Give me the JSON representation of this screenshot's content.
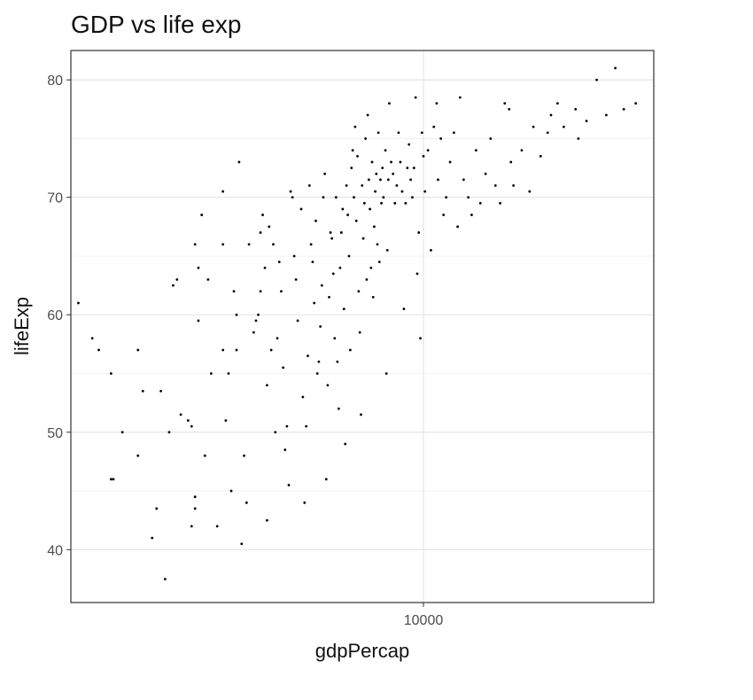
{
  "chart_data": {
    "type": "scatter",
    "title": "GDP vs life exp",
    "xlabel": "gdpPercap",
    "ylabel": "lifeExp",
    "x_scale": "log10",
    "x_ticks": [
      10000
    ],
    "x_tick_labels": [
      "10000"
    ],
    "xlim": [
      1000,
      45000
    ],
    "y_ticks": [
      40,
      50,
      60,
      70,
      80
    ],
    "y_tick_labels": [
      "40",
      "50",
      "60",
      "70",
      "80"
    ],
    "ylim": [
      35.5,
      82.5
    ],
    "grid": true,
    "marker_color": "#000000",
    "points": [
      [
        1050,
        61
      ],
      [
        1150,
        58
      ],
      [
        1200,
        57
      ],
      [
        1300,
        55
      ],
      [
        1400,
        50
      ],
      [
        1300,
        46
      ],
      [
        1320,
        46
      ],
      [
        1550,
        57
      ],
      [
        1600,
        53.5
      ],
      [
        1700,
        41
      ],
      [
        1750,
        43.5
      ],
      [
        1800,
        53.5
      ],
      [
        1850,
        37.5
      ],
      [
        1900,
        50
      ],
      [
        1550,
        48
      ],
      [
        1950,
        62.5
      ],
      [
        2000,
        63
      ],
      [
        2050,
        51.5
      ],
      [
        2150,
        51
      ],
      [
        2200,
        50.5
      ],
      [
        2200,
        42
      ],
      [
        2250,
        43.5
      ],
      [
        2250,
        44.5
      ],
      [
        2300,
        59.5
      ],
      [
        2250,
        66
      ],
      [
        2300,
        64
      ],
      [
        2350,
        68.5
      ],
      [
        2450,
        63
      ],
      [
        2400,
        48
      ],
      [
        2500,
        55
      ],
      [
        2600,
        42
      ],
      [
        2700,
        70.5
      ],
      [
        2700,
        66
      ],
      [
        2700,
        57
      ],
      [
        2750,
        51
      ],
      [
        2800,
        55
      ],
      [
        2850,
        45
      ],
      [
        2900,
        62
      ],
      [
        2950,
        60
      ],
      [
        2950,
        57
      ],
      [
        3000,
        73
      ],
      [
        3050,
        40.5
      ],
      [
        3100,
        48
      ],
      [
        3150,
        44
      ],
      [
        3200,
        66
      ],
      [
        3300,
        58.5
      ],
      [
        3350,
        59.5
      ],
      [
        3400,
        60
      ],
      [
        3450,
        62
      ],
      [
        3450,
        67
      ],
      [
        3500,
        68.5
      ],
      [
        3550,
        64
      ],
      [
        3600,
        54
      ],
      [
        3600,
        42.5
      ],
      [
        3650,
        67.5
      ],
      [
        3700,
        57
      ],
      [
        3750,
        66
      ],
      [
        3800,
        50
      ],
      [
        3850,
        58
      ],
      [
        3900,
        64.5
      ],
      [
        3950,
        62
      ],
      [
        4000,
        55.5
      ],
      [
        4050,
        48.5
      ],
      [
        4100,
        50.5
      ],
      [
        4150,
        45.5
      ],
      [
        4200,
        70.5
      ],
      [
        4250,
        70
      ],
      [
        4300,
        65
      ],
      [
        4350,
        63
      ],
      [
        4400,
        59.5
      ],
      [
        4500,
        69
      ],
      [
        4550,
        53
      ],
      [
        4600,
        44
      ],
      [
        4650,
        50.5
      ],
      [
        4700,
        56.5
      ],
      [
        4750,
        71
      ],
      [
        4800,
        66
      ],
      [
        4850,
        64.5
      ],
      [
        4900,
        61
      ],
      [
        4950,
        68
      ],
      [
        5000,
        55
      ],
      [
        5050,
        56
      ],
      [
        5100,
        59
      ],
      [
        5150,
        62.5
      ],
      [
        5200,
        70
      ],
      [
        5250,
        72
      ],
      [
        5300,
        46
      ],
      [
        5350,
        54
      ],
      [
        5400,
        61.5
      ],
      [
        5450,
        67
      ],
      [
        5500,
        66.5
      ],
      [
        5550,
        63.5
      ],
      [
        5600,
        58
      ],
      [
        5650,
        70
      ],
      [
        5700,
        56
      ],
      [
        5750,
        52
      ],
      [
        5800,
        64
      ],
      [
        5850,
        67
      ],
      [
        5900,
        69
      ],
      [
        5950,
        60.5
      ],
      [
        6000,
        49
      ],
      [
        6050,
        71
      ],
      [
        6100,
        68.5
      ],
      [
        6150,
        65
      ],
      [
        6200,
        57
      ],
      [
        6250,
        72.5
      ],
      [
        6300,
        74
      ],
      [
        6350,
        70
      ],
      [
        6400,
        76
      ],
      [
        6450,
        68
      ],
      [
        6500,
        73.5
      ],
      [
        6550,
        62
      ],
      [
        6600,
        58.5
      ],
      [
        6650,
        51.5
      ],
      [
        6700,
        71
      ],
      [
        6750,
        66.5
      ],
      [
        6800,
        69.5
      ],
      [
        6850,
        75
      ],
      [
        6900,
        63
      ],
      [
        6950,
        77
      ],
      [
        7000,
        71.5
      ],
      [
        7050,
        69
      ],
      [
        7100,
        64
      ],
      [
        7150,
        73
      ],
      [
        7200,
        61.5
      ],
      [
        7250,
        67.5
      ],
      [
        7300,
        70.5
      ],
      [
        7350,
        72
      ],
      [
        7400,
        66
      ],
      [
        7450,
        75.5
      ],
      [
        7500,
        64.5
      ],
      [
        7550,
        71.5
      ],
      [
        7600,
        69.5
      ],
      [
        7650,
        72.5
      ],
      [
        7700,
        70
      ],
      [
        7800,
        74
      ],
      [
        7850,
        55
      ],
      [
        7900,
        65.5
      ],
      [
        7950,
        71.5
      ],
      [
        8000,
        78
      ],
      [
        8100,
        73
      ],
      [
        8200,
        72
      ],
      [
        8300,
        69.5
      ],
      [
        8400,
        71
      ],
      [
        8500,
        75.5
      ],
      [
        8600,
        73
      ],
      [
        8700,
        70.5
      ],
      [
        8800,
        60.5
      ],
      [
        8900,
        69.5
      ],
      [
        9000,
        72.5
      ],
      [
        9100,
        74.5
      ],
      [
        9200,
        71.5
      ],
      [
        9300,
        70
      ],
      [
        9400,
        72.5
      ],
      [
        9500,
        78.5
      ],
      [
        9600,
        63.5
      ],
      [
        9700,
        67
      ],
      [
        9800,
        58
      ],
      [
        9900,
        75.5
      ],
      [
        10000,
        73.5
      ],
      [
        10100,
        70.5
      ],
      [
        10300,
        74
      ],
      [
        10500,
        65.5
      ],
      [
        10700,
        76
      ],
      [
        10900,
        78
      ],
      [
        11000,
        71.5
      ],
      [
        11200,
        75
      ],
      [
        11400,
        68.5
      ],
      [
        11600,
        70
      ],
      [
        11900,
        73
      ],
      [
        12200,
        75.5
      ],
      [
        12500,
        67.5
      ],
      [
        12700,
        78.5
      ],
      [
        13000,
        71.5
      ],
      [
        13400,
        70
      ],
      [
        13700,
        68.5
      ],
      [
        14100,
        74
      ],
      [
        14500,
        69.5
      ],
      [
        15000,
        72
      ],
      [
        15500,
        75
      ],
      [
        16000,
        71
      ],
      [
        16500,
        69.5
      ],
      [
        17000,
        78
      ],
      [
        17500,
        77.5
      ],
      [
        17700,
        73
      ],
      [
        18000,
        71
      ],
      [
        19000,
        74
      ],
      [
        20000,
        70.5
      ],
      [
        20500,
        76
      ],
      [
        21500,
        73.5
      ],
      [
        22500,
        75.5
      ],
      [
        23000,
        77
      ],
      [
        24000,
        78
      ],
      [
        25000,
        76
      ],
      [
        27000,
        77.5
      ],
      [
        27500,
        75
      ],
      [
        29000,
        76.5
      ],
      [
        31000,
        80
      ],
      [
        33000,
        77
      ],
      [
        35000,
        81
      ],
      [
        37000,
        77.5
      ],
      [
        40000,
        78
      ]
    ]
  }
}
